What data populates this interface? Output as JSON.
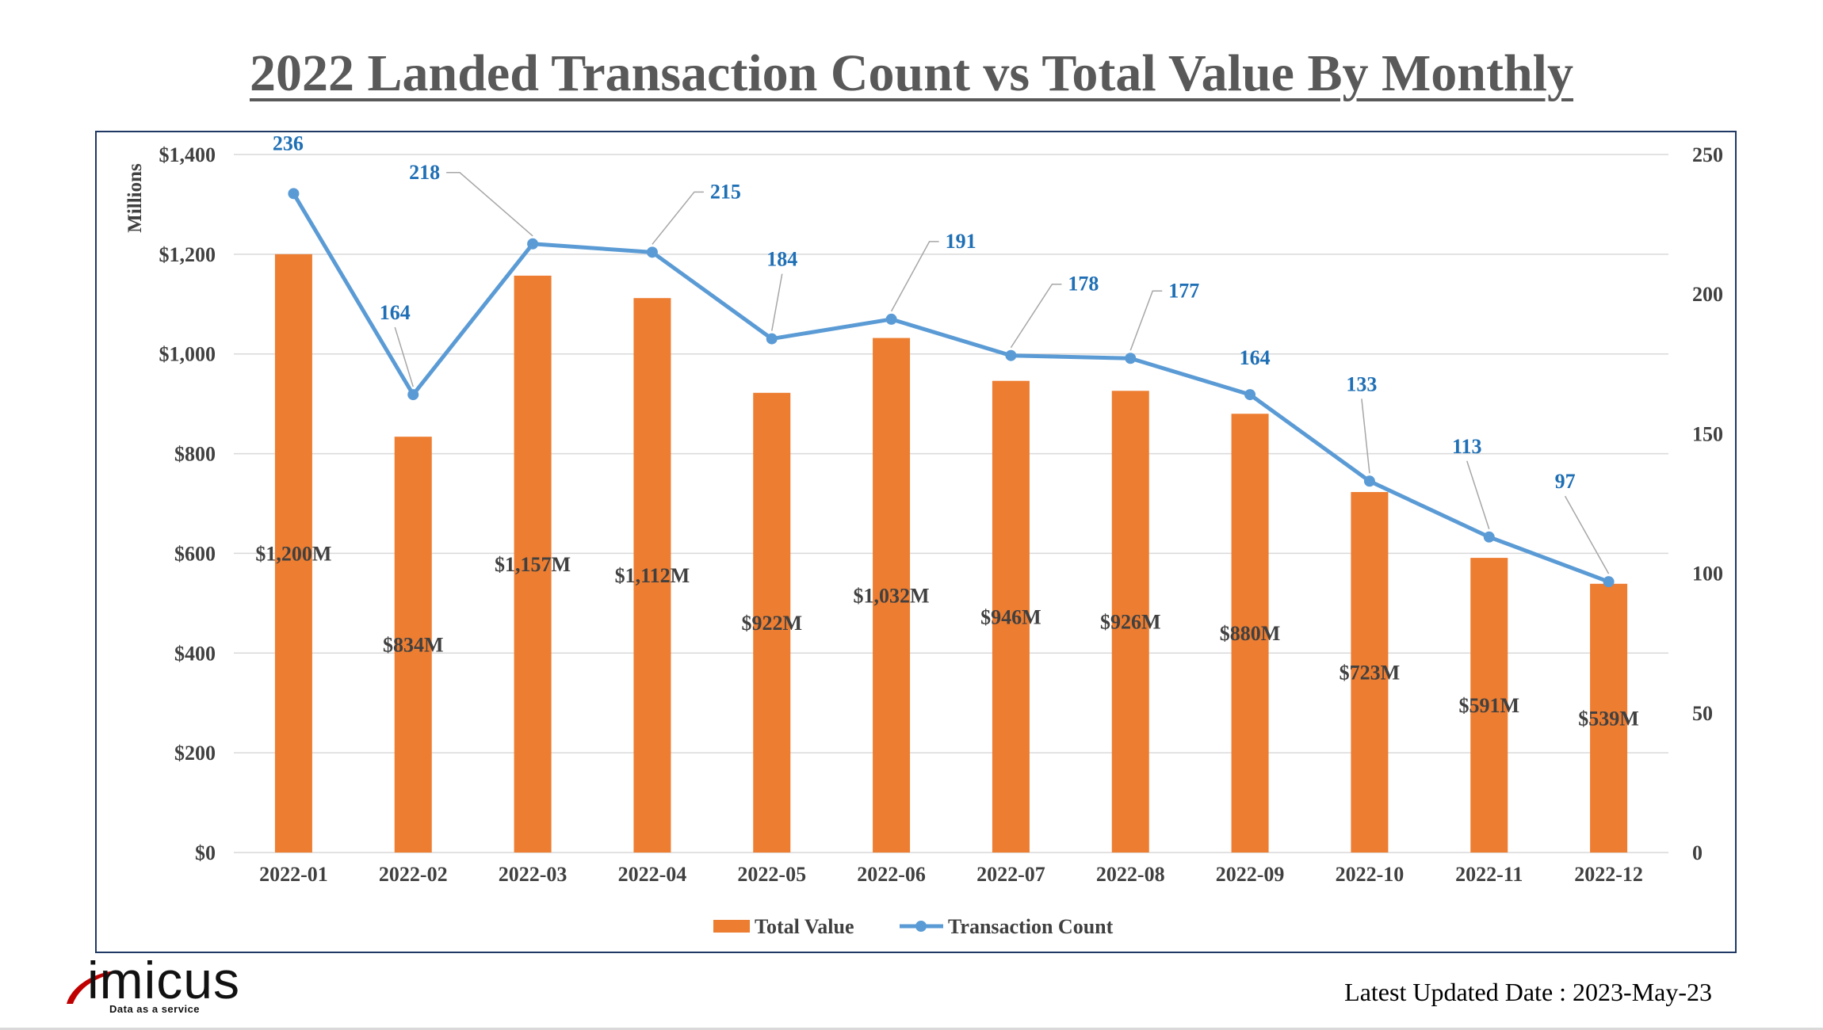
{
  "title": "2022 Landed Transaction Count vs Total Value By Monthly",
  "footer": {
    "logo_text": "imicus",
    "logo_tagline": "Data as a service",
    "updated_date": "Latest Updated Date : 2023-May-23"
  },
  "chart_data": {
    "type": "bar",
    "categories": [
      "2022-01",
      "2022-02",
      "2022-03",
      "2022-04",
      "2022-05",
      "2022-06",
      "2022-07",
      "2022-08",
      "2022-09",
      "2022-10",
      "2022-11",
      "2022-12"
    ],
    "series": [
      {
        "name": "Total Value",
        "type": "bar",
        "axis": "left",
        "color": "#ED7D31",
        "values": [
          1200,
          834,
          1157,
          1112,
          922,
          1032,
          946,
          926,
          880,
          723,
          591,
          539
        ],
        "labels": [
          "$1,200M",
          "$834M",
          "$1,157M",
          "$1,112M",
          "$922M",
          "$1,032M",
          "$946M",
          "$926M",
          "$880M",
          "$723M",
          "$591M",
          "$539M"
        ]
      },
      {
        "name": "Transaction Count",
        "type": "line",
        "axis": "right",
        "color": "#5B9BD5",
        "label_color": "#1F6FB5",
        "values": [
          236,
          164,
          218,
          215,
          184,
          191,
          178,
          177,
          164,
          133,
          113,
          97
        ]
      }
    ],
    "ylabel_left": "Millions",
    "ylim_left": [
      0,
      1400
    ],
    "yticks_left": [
      "$0",
      "$200",
      "$400",
      "$600",
      "$800",
      "$1,000",
      "$1,200",
      "$1,400"
    ],
    "ylim_right": [
      0,
      250
    ],
    "yticks_right": [
      "0",
      "50",
      "100",
      "150",
      "200",
      "250"
    ],
    "grid": true,
    "legend_position": "bottom"
  }
}
